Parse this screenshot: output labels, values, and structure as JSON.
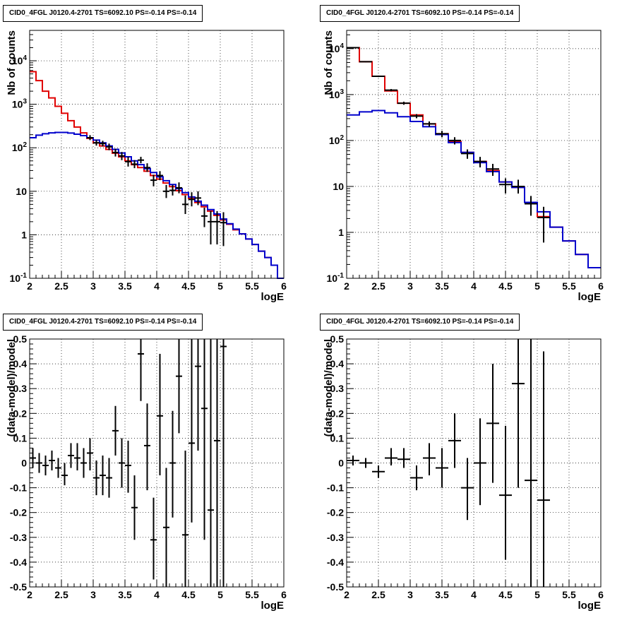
{
  "window_title": "",
  "chart_data": [
    {
      "id": "counts-left",
      "type": "line",
      "title": "CID0_4FGL J0120.4-2701 TS=6092.10 PS=-0.14 PS=-0.14",
      "xlabel": "logE",
      "ylabel": "Nb of counts",
      "xlim": [
        2,
        6
      ],
      "ylim": [
        0.1,
        50000
      ],
      "yscale": "log",
      "grid": true,
      "x_ticks": [
        "2",
        "2.5",
        "3",
        "3.5",
        "4",
        "4.5",
        "5",
        "5.5",
        "6"
      ],
      "y_ticks": [
        {
          "label": "10^-1",
          "v": 0.1
        },
        {
          "label": "1",
          "v": 1
        },
        {
          "label": "10",
          "v": 10
        },
        {
          "label": "10^2",
          "v": 100
        },
        {
          "label": "10^3",
          "v": 1000
        },
        {
          "label": "10^4",
          "v": 10000
        }
      ],
      "x_edges": [
        2.0,
        2.1,
        2.2,
        2.3,
        2.4,
        2.5,
        2.6,
        2.7,
        2.8,
        2.9,
        3.0,
        3.1,
        3.2,
        3.3,
        3.4,
        3.5,
        3.6,
        3.7,
        3.8,
        3.9,
        4.0,
        4.1,
        4.2,
        4.3,
        4.4,
        4.5,
        4.6,
        4.7,
        4.8,
        4.9,
        5.0,
        5.1,
        5.2,
        5.3,
        5.4,
        5.5,
        5.6,
        5.7,
        5.8,
        5.9,
        6.0
      ],
      "series": [
        {
          "color": "#e00000",
          "values": [
            5600,
            3500,
            2000,
            1400,
            900,
            620,
            420,
            300,
            220,
            165,
            130,
            110,
            92,
            75,
            62,
            50,
            41,
            35,
            29,
            23,
            19,
            15.5,
            12.8,
            10.3,
            8.4,
            6.8,
            5.5,
            4.4,
            3.5,
            2.8,
            2.2,
            1.75,
            1.3,
            1.05,
            0.8,
            0.6,
            0.42,
            0.3,
            0.2,
            0.1
          ]
        },
        {
          "color": "#0000cc",
          "values": [
            170,
            195,
            210,
            220,
            225,
            225,
            218,
            205,
            190,
            170,
            150,
            130,
            110,
            92,
            76,
            62,
            50,
            41,
            33,
            27,
            21.5,
            17.5,
            14.3,
            11.5,
            9.3,
            7.4,
            5.9,
            4.8,
            3.8,
            3.0,
            2.3,
            1.8,
            1.35,
            1.05,
            0.8,
            0.6,
            0.42,
            0.3,
            0.2,
            0.1
          ]
        }
      ],
      "data_points": [
        {
          "x": 2.95,
          "y": 170,
          "lo": 150,
          "hi": 195
        },
        {
          "x": 3.05,
          "y": 130,
          "lo": 112,
          "hi": 150
        },
        {
          "x": 3.15,
          "y": 125,
          "lo": 108,
          "hi": 145
        },
        {
          "x": 3.25,
          "y": 105,
          "lo": 88,
          "hi": 125
        },
        {
          "x": 3.35,
          "y": 78,
          "lo": 63,
          "hi": 95
        },
        {
          "x": 3.45,
          "y": 65,
          "lo": 52,
          "hi": 80
        },
        {
          "x": 3.55,
          "y": 48,
          "lo": 37,
          "hi": 62
        },
        {
          "x": 3.65,
          "y": 42,
          "lo": 34,
          "hi": 52
        },
        {
          "x": 3.75,
          "y": 52,
          "lo": 44,
          "hi": 62
        },
        {
          "x": 3.85,
          "y": 35,
          "lo": 28,
          "hi": 44
        },
        {
          "x": 3.95,
          "y": 18,
          "lo": 13,
          "hi": 24
        },
        {
          "x": 4.05,
          "y": 23,
          "lo": 18,
          "hi": 29
        },
        {
          "x": 4.15,
          "y": 10,
          "lo": 7,
          "hi": 14
        },
        {
          "x": 4.25,
          "y": 10.5,
          "lo": 8,
          "hi": 14
        },
        {
          "x": 4.35,
          "y": 12,
          "lo": 9,
          "hi": 16
        },
        {
          "x": 4.45,
          "y": 5,
          "lo": 3,
          "hi": 8
        },
        {
          "x": 4.55,
          "y": 6.5,
          "lo": 4.5,
          "hi": 9.5
        },
        {
          "x": 4.65,
          "y": 7,
          "lo": 4.8,
          "hi": 10
        },
        {
          "x": 4.75,
          "y": 2.7,
          "lo": 1.5,
          "hi": 4.2
        },
        {
          "x": 4.85,
          "y": 2.0,
          "lo": 0.6,
          "hi": 3.5
        },
        {
          "x": 4.95,
          "y": 2.0,
          "lo": 0.6,
          "hi": 3.5
        },
        {
          "x": 5.05,
          "y": 1.9,
          "lo": 0.55,
          "hi": 3.3
        }
      ]
    },
    {
      "id": "counts-right",
      "type": "line",
      "title": "CID0_4FGL J0120.4-2701 TS=6092.10 PS=-0.14 PS=-0.14",
      "xlabel": "logE",
      "ylabel": "Nb of counts",
      "xlim": [
        2,
        6
      ],
      "ylim": [
        0.1,
        25000
      ],
      "yscale": "log",
      "grid": true,
      "x_ticks": [
        "2",
        "2.5",
        "3",
        "3.5",
        "4",
        "4.5",
        "5",
        "5.5",
        "6"
      ],
      "y_ticks": [
        {
          "label": "10^-1",
          "v": 0.1
        },
        {
          "label": "1",
          "v": 1
        },
        {
          "label": "10",
          "v": 10
        },
        {
          "label": "10^2",
          "v": 100
        },
        {
          "label": "10^3",
          "v": 1000
        },
        {
          "label": "10^4",
          "v": 10000
        }
      ],
      "x_edges": [
        2.0,
        2.2,
        2.4,
        2.6,
        2.8,
        3.0,
        3.2,
        3.4,
        3.6,
        3.8,
        4.0,
        4.2,
        4.4,
        4.6,
        4.8,
        5.0,
        5.2,
        5.4,
        5.6,
        5.8,
        6.0
      ],
      "series": [
        {
          "color": "#e00000",
          "values": [
            10500,
            5200,
            2500,
            1200,
            650,
            360,
            230,
            140,
            95,
            55,
            35,
            22,
            12.5,
            9.5,
            4.5,
            2.2,
            1.3,
            0.65,
            0.33,
            0.17
          ]
        },
        {
          "color": "#0000cc",
          "values": [
            360,
            420,
            450,
            400,
            330,
            260,
            200,
            135,
            90,
            55,
            33,
            21,
            12.5,
            9.5,
            4.5,
            2.8,
            1.3,
            0.65,
            0.33,
            0.17
          ]
        }
      ],
      "data_points": [
        {
          "x": 2.1,
          "y": 10500,
          "lo": 10300,
          "hi": 10700
        },
        {
          "x": 2.3,
          "y": 5200,
          "lo": 5060,
          "hi": 5340
        },
        {
          "x": 2.5,
          "y": 2500,
          "lo": 2400,
          "hi": 2600
        },
        {
          "x": 2.7,
          "y": 1250,
          "lo": 1180,
          "hi": 1320
        },
        {
          "x": 2.9,
          "y": 650,
          "lo": 600,
          "hi": 700
        },
        {
          "x": 3.1,
          "y": 340,
          "lo": 305,
          "hi": 375
        },
        {
          "x": 3.3,
          "y": 230,
          "lo": 200,
          "hi": 260
        },
        {
          "x": 3.5,
          "y": 140,
          "lo": 118,
          "hi": 162
        },
        {
          "x": 3.7,
          "y": 100,
          "lo": 82,
          "hi": 118
        },
        {
          "x": 3.9,
          "y": 52,
          "lo": 40,
          "hi": 64
        },
        {
          "x": 4.1,
          "y": 35,
          "lo": 26,
          "hi": 44
        },
        {
          "x": 4.3,
          "y": 24,
          "lo": 17,
          "hi": 31
        },
        {
          "x": 4.5,
          "y": 11,
          "lo": 7,
          "hi": 15
        },
        {
          "x": 4.7,
          "y": 10,
          "lo": 7,
          "hi": 14
        },
        {
          "x": 4.9,
          "y": 4.2,
          "lo": 2.3,
          "hi": 6.2
        },
        {
          "x": 5.1,
          "y": 2.1,
          "lo": 0.6,
          "hi": 3.6
        }
      ]
    },
    {
      "id": "resid-left",
      "type": "scatter",
      "title": "CID0_4FGL J0120.4-2701 TS=6092.10 PS=-0.14 PS=-0.14",
      "xlabel": "logE",
      "ylabel": "(data-model)/model",
      "xlim": [
        2,
        6
      ],
      "ylim": [
        -0.5,
        0.5
      ],
      "yscale": "linear",
      "grid": true,
      "x_ticks": [
        "2",
        "2.5",
        "3",
        "3.5",
        "4",
        "4.5",
        "5",
        "5.5",
        "6"
      ],
      "y_ticks": [
        {
          "label": "-0.5",
          "v": -0.5
        },
        {
          "label": "-0.4",
          "v": -0.4
        },
        {
          "label": "-0.3",
          "v": -0.3
        },
        {
          "label": "-0.2",
          "v": -0.2
        },
        {
          "label": "-0.1",
          "v": -0.1
        },
        {
          "label": "0",
          "v": 0
        },
        {
          "label": "0.1",
          "v": 0.1
        },
        {
          "label": "0.2",
          "v": 0.2
        },
        {
          "label": "0.3",
          "v": 0.3
        },
        {
          "label": "0.4",
          "v": 0.4
        },
        {
          "label": "0.5",
          "v": 0.5
        }
      ],
      "bin_halfwidth": 0.05,
      "data_points": [
        {
          "x": 2.05,
          "y": 0.02,
          "lo": -0.02,
          "hi": 0.06
        },
        {
          "x": 2.15,
          "y": 0.0,
          "lo": -0.04,
          "hi": 0.04
        },
        {
          "x": 2.25,
          "y": -0.01,
          "lo": -0.05,
          "hi": 0.03
        },
        {
          "x": 2.35,
          "y": 0.01,
          "lo": -0.03,
          "hi": 0.05
        },
        {
          "x": 2.45,
          "y": -0.02,
          "lo": -0.06,
          "hi": 0.02
        },
        {
          "x": 2.55,
          "y": -0.05,
          "lo": -0.09,
          "hi": 0.0
        },
        {
          "x": 2.65,
          "y": 0.03,
          "lo": -0.02,
          "hi": 0.08
        },
        {
          "x": 2.75,
          "y": 0.02,
          "lo": -0.03,
          "hi": 0.08
        },
        {
          "x": 2.85,
          "y": 0.0,
          "lo": -0.06,
          "hi": 0.06
        },
        {
          "x": 2.95,
          "y": 0.04,
          "lo": -0.03,
          "hi": 0.1
        },
        {
          "x": 3.05,
          "y": -0.06,
          "lo": -0.13,
          "hi": 0.01
        },
        {
          "x": 3.15,
          "y": -0.05,
          "lo": -0.13,
          "hi": 0.03
        },
        {
          "x": 3.25,
          "y": -0.06,
          "lo": -0.14,
          "hi": 0.02
        },
        {
          "x": 3.35,
          "y": 0.13,
          "lo": 0.03,
          "hi": 0.23
        },
        {
          "x": 3.45,
          "y": 0.0,
          "lo": -0.1,
          "hi": 0.1
        },
        {
          "x": 3.55,
          "y": -0.01,
          "lo": -0.12,
          "hi": 0.09
        },
        {
          "x": 3.65,
          "y": -0.18,
          "lo": -0.31,
          "hi": -0.05
        },
        {
          "x": 3.75,
          "y": 0.44,
          "lo": 0.25,
          "hi": 0.5
        },
        {
          "x": 3.85,
          "y": 0.07,
          "lo": -0.11,
          "hi": 0.24
        },
        {
          "x": 3.95,
          "y": -0.31,
          "lo": -0.47,
          "hi": -0.14
        },
        {
          "x": 4.05,
          "y": 0.19,
          "lo": -0.05,
          "hi": 0.44
        },
        {
          "x": 4.15,
          "y": -0.26,
          "lo": -0.5,
          "hi": -0.02
        },
        {
          "x": 4.25,
          "y": 0.0,
          "lo": -0.22,
          "hi": 0.21
        },
        {
          "x": 4.35,
          "y": 0.35,
          "lo": 0.12,
          "hi": 0.5
        },
        {
          "x": 4.45,
          "y": -0.29,
          "lo": -0.5,
          "hi": 0.05
        },
        {
          "x": 4.55,
          "y": 0.08,
          "lo": -0.24,
          "hi": 0.5
        },
        {
          "x": 4.65,
          "y": 0.39,
          "lo": 0.05,
          "hi": 0.5
        },
        {
          "x": 4.75,
          "y": 0.22,
          "lo": -0.31,
          "hi": 0.5
        },
        {
          "x": 4.85,
          "y": -0.19,
          "lo": -0.5,
          "hi": 0.5
        },
        {
          "x": 4.95,
          "y": 0.09,
          "lo": -0.5,
          "hi": 0.5
        },
        {
          "x": 5.05,
          "y": 0.47,
          "lo": -0.5,
          "hi": 0.5
        }
      ]
    },
    {
      "id": "resid-right",
      "type": "scatter",
      "title": "CID0_4FGL J0120.4-2701 TS=6092.10 PS=-0.14 PS=-0.14",
      "xlabel": "logE",
      "ylabel": "(data-model)/model",
      "xlim": [
        2,
        6
      ],
      "ylim": [
        -0.5,
        0.5
      ],
      "yscale": "linear",
      "grid": true,
      "x_ticks": [
        "2",
        "2.5",
        "3",
        "3.5",
        "4",
        "4.5",
        "5",
        "5.5",
        "6"
      ],
      "y_ticks": [
        {
          "label": "-0.5",
          "v": -0.5
        },
        {
          "label": "-0.4",
          "v": -0.4
        },
        {
          "label": "-0.3",
          "v": -0.3
        },
        {
          "label": "-0.2",
          "v": -0.2
        },
        {
          "label": "-0.1",
          "v": -0.1
        },
        {
          "label": "0",
          "v": 0
        },
        {
          "label": "0.1",
          "v": 0.1
        },
        {
          "label": "0.2",
          "v": 0.2
        },
        {
          "label": "0.3",
          "v": 0.3
        },
        {
          "label": "0.4",
          "v": 0.4
        },
        {
          "label": "0.5",
          "v": 0.5
        }
      ],
      "bin_halfwidth": 0.1,
      "data_points": [
        {
          "x": 2.1,
          "y": 0.01,
          "lo": -0.01,
          "hi": 0.03
        },
        {
          "x": 2.3,
          "y": 0.0,
          "lo": -0.02,
          "hi": 0.02
        },
        {
          "x": 2.5,
          "y": -0.035,
          "lo": -0.06,
          "hi": -0.01
        },
        {
          "x": 2.7,
          "y": 0.02,
          "lo": -0.01,
          "hi": 0.06
        },
        {
          "x": 2.9,
          "y": 0.015,
          "lo": -0.02,
          "hi": 0.06
        },
        {
          "x": 3.1,
          "y": -0.06,
          "lo": -0.11,
          "hi": -0.01
        },
        {
          "x": 3.3,
          "y": 0.02,
          "lo": -0.05,
          "hi": 0.08
        },
        {
          "x": 3.5,
          "y": -0.02,
          "lo": -0.1,
          "hi": 0.06
        },
        {
          "x": 3.7,
          "y": 0.09,
          "lo": -0.02,
          "hi": 0.2
        },
        {
          "x": 3.9,
          "y": -0.1,
          "lo": -0.23,
          "hi": 0.02
        },
        {
          "x": 4.1,
          "y": 0.0,
          "lo": -0.17,
          "hi": 0.18
        },
        {
          "x": 4.3,
          "y": 0.16,
          "lo": -0.08,
          "hi": 0.4
        },
        {
          "x": 4.5,
          "y": -0.13,
          "lo": -0.39,
          "hi": 0.15
        },
        {
          "x": 4.7,
          "y": 0.32,
          "lo": -0.1,
          "hi": 0.5
        },
        {
          "x": 4.9,
          "y": -0.07,
          "lo": -0.5,
          "hi": 0.5
        },
        {
          "x": 5.1,
          "y": -0.15,
          "lo": -0.5,
          "hi": 0.45
        }
      ]
    }
  ]
}
